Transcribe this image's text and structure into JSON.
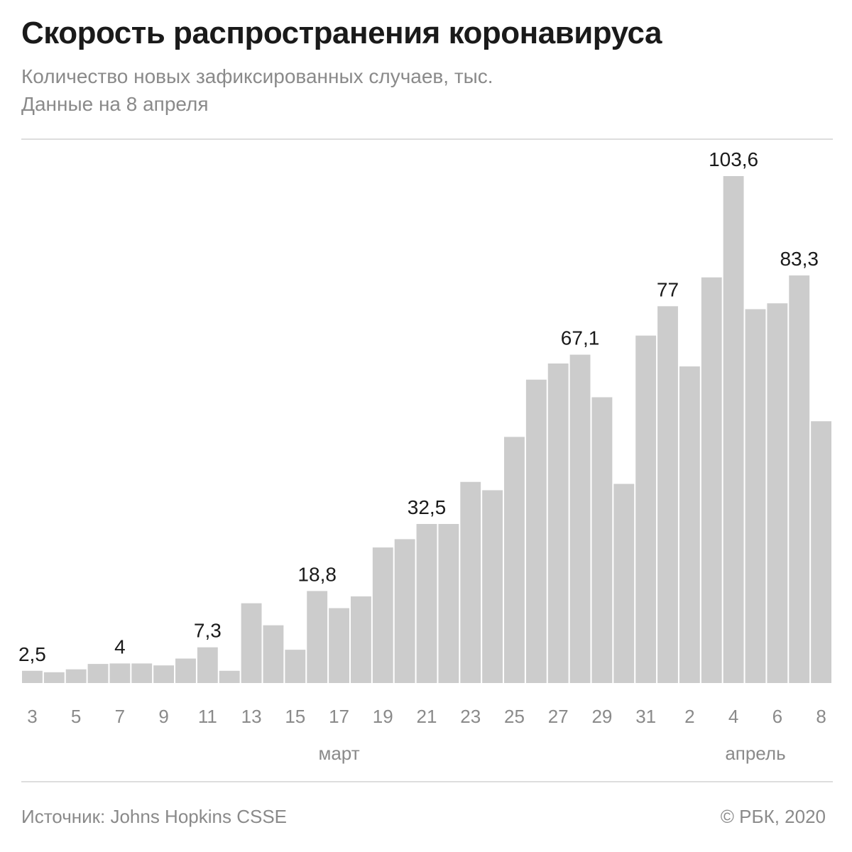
{
  "header": {
    "title": "Скорость распространения коронавируса",
    "subtitle": "Количество новых зафиксированных случаев, тыс.",
    "date_note": "Данные на 8 апреля"
  },
  "footer": {
    "source": "Источник: Johns Hopkins CSSE",
    "copyright": "© РБК, 2020"
  },
  "colors": {
    "bar": "#cccccc",
    "tick": "#8a8a8a",
    "label": "#1a1a1a"
  },
  "chart_data": {
    "type": "bar",
    "title": "Скорость распространения коронавируса",
    "ylabel": "",
    "xlabel": "",
    "ylim": [
      0,
      103.6
    ],
    "grid": false,
    "categories": [
      "3",
      "4",
      "5",
      "6",
      "7",
      "8",
      "9",
      "10",
      "11",
      "12",
      "13",
      "14",
      "15",
      "16",
      "17",
      "18",
      "19",
      "20",
      "21",
      "22",
      "23",
      "24",
      "25",
      "26",
      "27",
      "28",
      "29",
      "30",
      "31",
      "1",
      "2",
      "3",
      "4",
      "5",
      "6",
      "7",
      "8"
    ],
    "tick_labels": [
      "3",
      "5",
      "7",
      "9",
      "11",
      "13",
      "15",
      "17",
      "19",
      "21",
      "23",
      "25",
      "27",
      "29",
      "31",
      "2",
      "4",
      "6",
      "8"
    ],
    "tick_indices": [
      0,
      2,
      4,
      6,
      8,
      10,
      12,
      14,
      16,
      18,
      20,
      22,
      24,
      26,
      28,
      30,
      32,
      34,
      36
    ],
    "month_labels": [
      {
        "label": "март",
        "index": 14
      },
      {
        "label": "апрель",
        "index": 33
      }
    ],
    "values": [
      2.5,
      2.2,
      2.8,
      3.9,
      4,
      4,
      3.6,
      5,
      7.3,
      2.5,
      16.3,
      11.8,
      6.8,
      18.8,
      15.3,
      17.7,
      27.7,
      29.4,
      32.5,
      32.5,
      41.1,
      39.4,
      50.3,
      62.0,
      65.3,
      67.1,
      58.4,
      40.7,
      71.0,
      77,
      64.7,
      82.9,
      103.6,
      76.4,
      77.6,
      83.3,
      53.5
    ],
    "data_labels": [
      {
        "index": 0,
        "text": "2,5"
      },
      {
        "index": 4,
        "text": "4"
      },
      {
        "index": 8,
        "text": "7,3"
      },
      {
        "index": 13,
        "text": "18,8"
      },
      {
        "index": 18,
        "text": "32,5"
      },
      {
        "index": 25,
        "text": "67,1"
      },
      {
        "index": 29,
        "text": "77"
      },
      {
        "index": 32,
        "text": "103,6"
      },
      {
        "index": 35,
        "text": "83,3"
      }
    ]
  }
}
